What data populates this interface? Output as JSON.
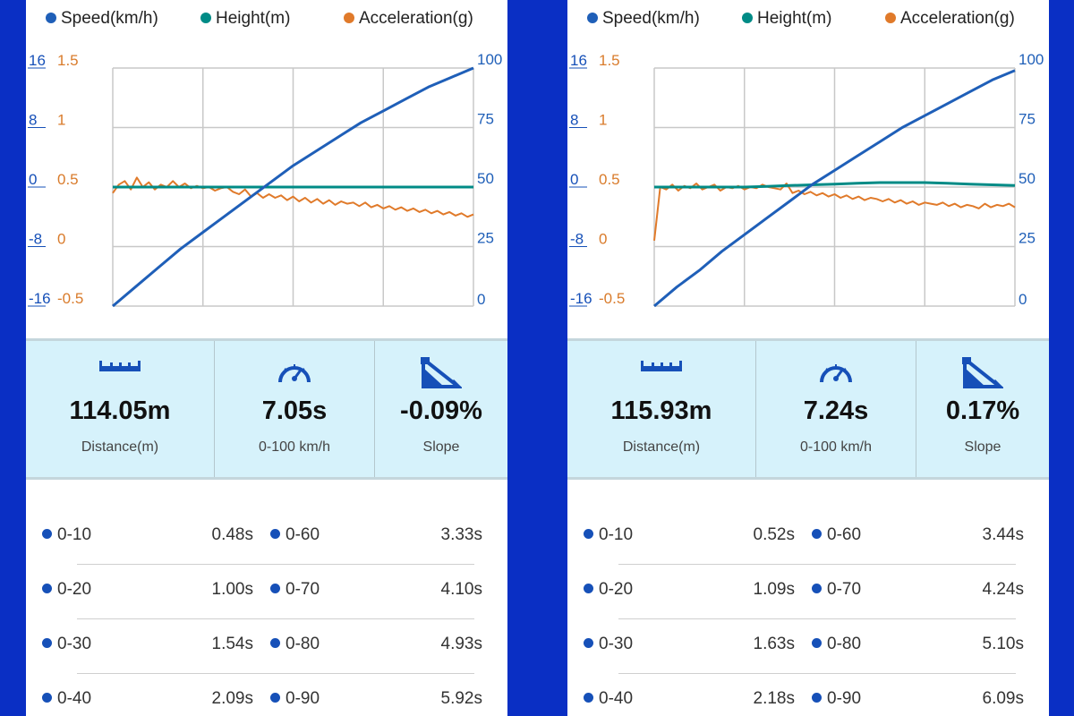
{
  "legend": [
    {
      "label": "Speed(km/h)",
      "color": "#1f5fb8"
    },
    {
      "label": "Height(m)",
      "color": "#008b86"
    },
    {
      "label": "Acceleration(g)",
      "color": "#e07a2a"
    }
  ],
  "panels": [
    {
      "stats": {
        "distance_value": "114.05m",
        "distance_label": "Distance(m)",
        "time_value": "7.05s",
        "time_label": "0-100 km/h",
        "slope_value": "-0.09%",
        "slope_label": "Slope"
      },
      "splits": [
        {
          "a_label": "0-10",
          "a_time": "0.48s",
          "b_label": "0-60",
          "b_time": "3.33s"
        },
        {
          "a_label": "0-20",
          "a_time": "1.00s",
          "b_label": "0-70",
          "b_time": "4.10s"
        },
        {
          "a_label": "0-30",
          "a_time": "1.54s",
          "b_label": "0-80",
          "b_time": "4.93s"
        },
        {
          "a_label": "0-40",
          "a_time": "2.09s",
          "b_label": "0-90",
          "b_time": "5.92s"
        }
      ]
    },
    {
      "stats": {
        "distance_value": "115.93m",
        "distance_label": "Distance(m)",
        "time_value": "7.24s",
        "time_label": "0-100 km/h",
        "slope_value": "0.17%",
        "slope_label": "Slope"
      },
      "splits": [
        {
          "a_label": "0-10",
          "a_time": "0.52s",
          "b_label": "0-60",
          "b_time": "3.44s"
        },
        {
          "a_label": "0-20",
          "a_time": "1.09s",
          "b_label": "0-70",
          "b_time": "4.24s"
        },
        {
          "a_label": "0-30",
          "a_time": "1.63s",
          "b_label": "0-80",
          "b_time": "5.10s"
        },
        {
          "a_label": "0-40",
          "a_time": "2.18s",
          "b_label": "0-90",
          "b_time": "6.09s"
        }
      ]
    }
  ],
  "chart_data": [
    {
      "type": "line",
      "x_label": "",
      "grid": true,
      "axes": {
        "height_ticks": [
          "16",
          "8",
          "0",
          "-8",
          "-16"
        ],
        "accel_ticks": [
          "1.5",
          "1",
          "0.5",
          "0",
          "-0.5"
        ],
        "speed_ticks": [
          "100",
          "75",
          "50",
          "25",
          "0"
        ],
        "height_range": [
          -16,
          16
        ],
        "accel_range": [
          -0.5,
          1.5
        ],
        "speed_range": [
          0,
          100
        ]
      },
      "series": [
        {
          "name": "Speed(km/h)",
          "axis": "speed",
          "color": "#1f5fb8",
          "values": [
            0,
            8,
            16,
            24,
            31,
            38,
            45,
            52,
            59,
            65,
            71,
            77,
            82,
            87,
            92,
            96,
            100
          ]
        },
        {
          "name": "Height(m)",
          "axis": "height",
          "color": "#008b86",
          "values": [
            0,
            0,
            0,
            0,
            0,
            0,
            0,
            0,
            0,
            0,
            0,
            0,
            0,
            0,
            0,
            0,
            0
          ]
        },
        {
          "name": "Acceleration(g)",
          "axis": "accel",
          "color": "#e07a2a",
          "values": [
            0.45,
            0.52,
            0.55,
            0.48,
            0.58,
            0.5,
            0.54,
            0.48,
            0.52,
            0.5,
            0.55,
            0.5,
            0.53,
            0.49,
            0.51,
            0.49,
            0.5,
            0.47,
            0.49,
            0.5,
            0.46,
            0.44,
            0.48,
            0.42,
            0.45,
            0.41,
            0.44,
            0.41,
            0.43,
            0.39,
            0.42,
            0.38,
            0.41,
            0.37,
            0.4,
            0.36,
            0.39,
            0.35,
            0.38,
            0.36,
            0.37,
            0.34,
            0.37,
            0.33,
            0.35,
            0.32,
            0.34,
            0.31,
            0.33,
            0.3,
            0.32,
            0.29,
            0.31,
            0.28,
            0.3,
            0.27,
            0.29,
            0.26,
            0.28,
            0.25,
            0.27
          ]
        }
      ]
    },
    {
      "type": "line",
      "x_label": "",
      "grid": true,
      "axes": {
        "height_ticks": [
          "16",
          "8",
          "0",
          "-8",
          "-16"
        ],
        "accel_ticks": [
          "1.5",
          "1",
          "0.5",
          "0",
          "-0.5"
        ],
        "speed_ticks": [
          "100",
          "75",
          "50",
          "25",
          "0"
        ],
        "height_range": [
          -16,
          16
        ],
        "accel_range": [
          -0.5,
          1.5
        ],
        "speed_range": [
          0,
          100
        ]
      },
      "series": [
        {
          "name": "Speed(km/h)",
          "axis": "speed",
          "color": "#1f5fb8",
          "values": [
            0,
            8,
            15,
            23,
            30,
            37,
            44,
            51,
            57,
            63,
            69,
            75,
            80,
            85,
            90,
            95,
            99
          ]
        },
        {
          "name": "Height(m)",
          "axis": "height",
          "color": "#008b86",
          "values": [
            0,
            0,
            0,
            0,
            0,
            0.1,
            0.2,
            0.3,
            0.4,
            0.5,
            0.6,
            0.6,
            0.6,
            0.5,
            0.4,
            0.3,
            0.2
          ]
        },
        {
          "name": "Acceleration(g)",
          "axis": "accel",
          "color": "#e07a2a",
          "values": [
            0.05,
            0.5,
            0.48,
            0.52,
            0.47,
            0.51,
            0.49,
            0.53,
            0.48,
            0.5,
            0.52,
            0.47,
            0.5,
            0.49,
            0.51,
            0.48,
            0.5,
            0.49,
            0.52,
            0.5,
            0.49,
            0.48,
            0.53,
            0.45,
            0.47,
            0.44,
            0.46,
            0.43,
            0.45,
            0.42,
            0.44,
            0.41,
            0.43,
            0.4,
            0.42,
            0.39,
            0.41,
            0.4,
            0.38,
            0.4,
            0.37,
            0.39,
            0.36,
            0.38,
            0.35,
            0.37,
            0.36,
            0.35,
            0.37,
            0.34,
            0.36,
            0.33,
            0.35,
            0.34,
            0.32,
            0.36,
            0.33,
            0.35,
            0.34,
            0.36,
            0.33
          ]
        }
      ]
    }
  ]
}
